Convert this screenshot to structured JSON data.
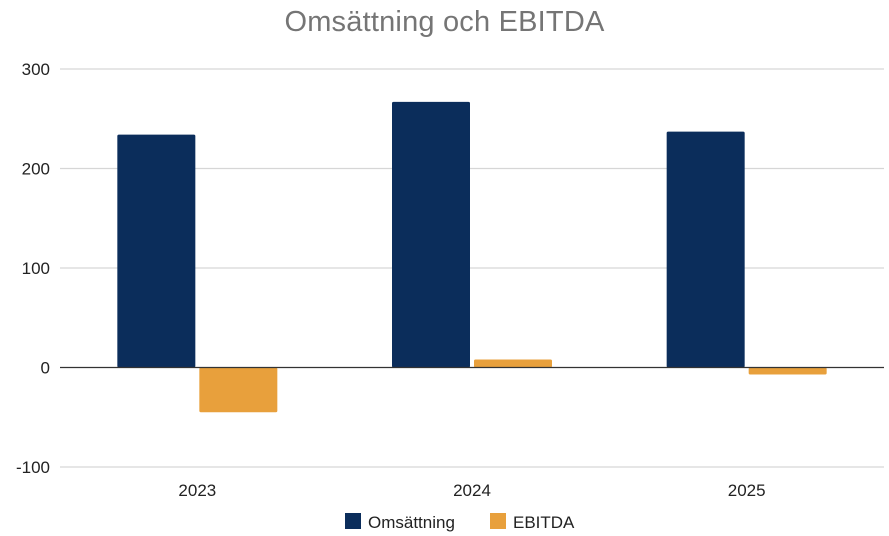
{
  "chart_data": {
    "type": "bar",
    "title": "Omsättning och  EBITDA",
    "categories": [
      "2023",
      "2024",
      "2025"
    ],
    "series": [
      {
        "name": "Omsättning",
        "values": [
          234,
          267,
          237
        ],
        "color": "#0b2d5b"
      },
      {
        "name": "EBITDA",
        "values": [
          -45,
          8,
          -7
        ],
        "color": "#e8a03c"
      }
    ],
    "ylim": [
      -100,
      300
    ],
    "yticks": [
      -100,
      0,
      100,
      200,
      300
    ],
    "xlabel": "",
    "ylabel": "",
    "grid": true,
    "legend": "bottom"
  }
}
